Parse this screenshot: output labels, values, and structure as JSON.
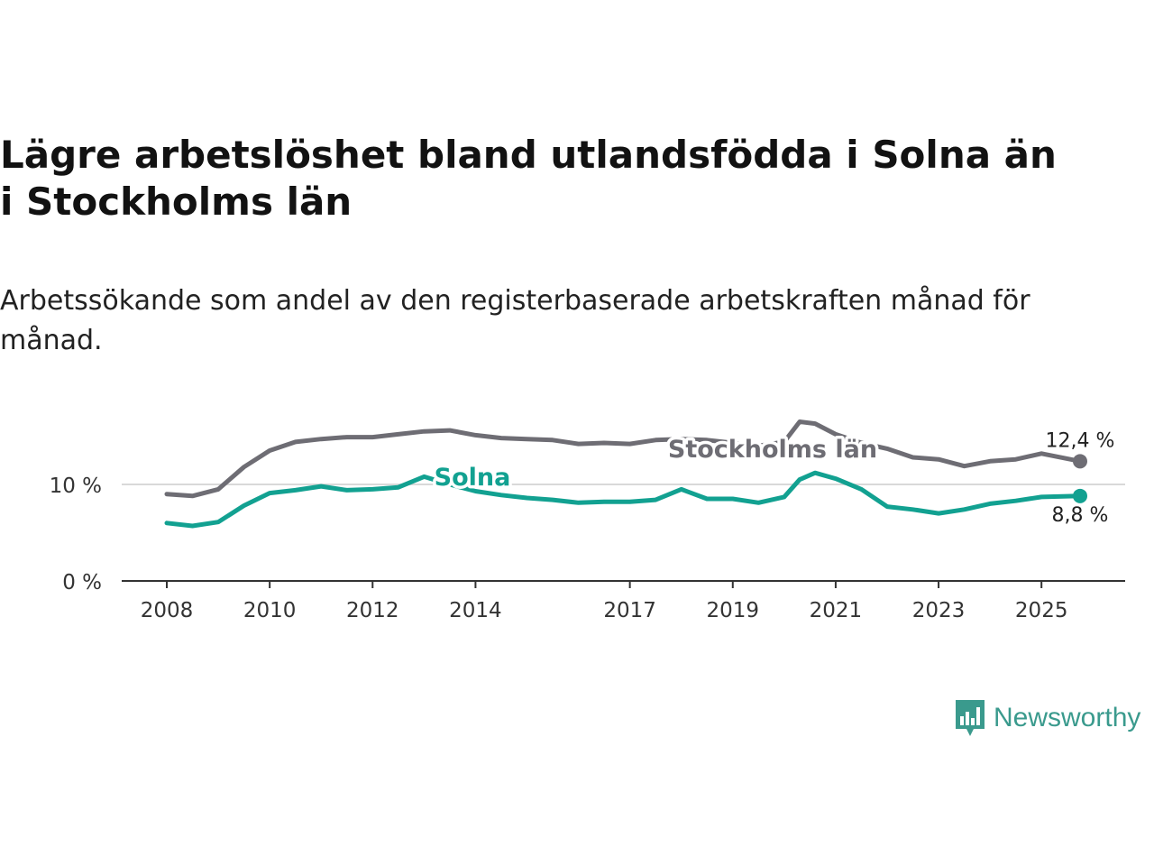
{
  "title": "Lägre arbetslöshet bland utlandsfödda i Solna än i Stockholms län",
  "subtitle": "Arbetssökande som andel av den registerbaserade arbetskraften månad för månad.",
  "brand": {
    "name": "Newsworthy",
    "color": "#3a9a8d",
    "icon": "bar-chart-speech-bubble-icon"
  },
  "chart_data": {
    "type": "line",
    "title": "Lägre arbetslöshet bland utlandsfödda i Solna än i Stockholms län",
    "xlabel": "",
    "ylabel": "",
    "xlim": [
      2008,
      2025.75
    ],
    "ylim": [
      0,
      15
    ],
    "y_ticks": [
      0,
      10
    ],
    "y_tick_labels": [
      "0 %",
      "10 %"
    ],
    "x_ticks": [
      2008,
      2010,
      2012,
      2014,
      2017,
      2019,
      2021,
      2023,
      2025
    ],
    "x_tick_labels": [
      "2008",
      "2010",
      "2012",
      "2014",
      "2017",
      "2019",
      "2021",
      "2023",
      "2025"
    ],
    "grid": "horizontal",
    "series": [
      {
        "name": "Stockholms län",
        "label": "Stockholms län",
        "color": "#6e6d74",
        "end_label": "12,4 %",
        "x": [
          2008,
          2008.5,
          2009,
          2009.5,
          2010,
          2010.5,
          2011,
          2011.5,
          2012,
          2012.5,
          2013,
          2013.5,
          2014,
          2014.5,
          2015,
          2015.5,
          2016,
          2016.5,
          2017,
          2017.5,
          2018,
          2018.5,
          2019,
          2019.5,
          2020,
          2020.3,
          2020.6,
          2021,
          2021.5,
          2022,
          2022.5,
          2023,
          2023.5,
          2024,
          2024.5,
          2025,
          2025.75
        ],
        "values": [
          9.0,
          8.8,
          9.5,
          11.8,
          13.5,
          14.4,
          14.7,
          14.9,
          14.9,
          15.2,
          15.5,
          15.6,
          15.1,
          14.8,
          14.7,
          14.6,
          14.2,
          14.3,
          14.2,
          14.6,
          14.7,
          14.6,
          14.3,
          14.0,
          14.4,
          16.5,
          16.3,
          15.2,
          14.3,
          13.7,
          12.8,
          12.6,
          11.9,
          12.4,
          12.6,
          13.2,
          12.4
        ]
      },
      {
        "name": "Solna",
        "label": "Solna",
        "color": "#12a191",
        "end_label": "8,8 %",
        "x": [
          2008,
          2008.5,
          2009,
          2009.5,
          2010,
          2010.5,
          2011,
          2011.5,
          2012,
          2012.5,
          2013,
          2013.5,
          2014,
          2014.5,
          2015,
          2015.5,
          2016,
          2016.5,
          2017,
          2017.5,
          2018,
          2018.5,
          2019,
          2019.5,
          2020,
          2020.3,
          2020.6,
          2021,
          2021.5,
          2022,
          2022.5,
          2023,
          2023.5,
          2024,
          2024.5,
          2025,
          2025.75
        ],
        "values": [
          6.0,
          5.7,
          6.1,
          7.8,
          9.1,
          9.4,
          9.8,
          9.4,
          9.5,
          9.7,
          10.8,
          10.0,
          9.3,
          8.9,
          8.6,
          8.4,
          8.1,
          8.2,
          8.2,
          8.4,
          9.5,
          8.5,
          8.5,
          8.1,
          8.7,
          10.5,
          11.2,
          10.6,
          9.5,
          7.7,
          7.4,
          7.0,
          7.4,
          8.0,
          8.3,
          8.7,
          8.8
        ]
      }
    ]
  }
}
